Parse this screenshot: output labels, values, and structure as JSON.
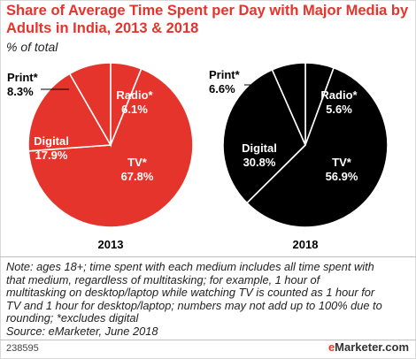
{
  "title": "Share of Average Time Spent per Day with Major Media by Adults in India, 2013 & 2018",
  "subtitle": "% of total",
  "chart_data": [
    {
      "type": "pie",
      "year": "2013",
      "slices": [
        {
          "name": "TV*",
          "value": 67.8,
          "label": "67.8%",
          "color": "#e4342b"
        },
        {
          "name": "Digital",
          "value": 17.9,
          "label": "17.9%",
          "color": "#e4342b"
        },
        {
          "name": "Print*",
          "value": 8.3,
          "label": "8.3%",
          "color": "#e4342b"
        },
        {
          "name": "Radio*",
          "value": 6.1,
          "label": "6.1%",
          "color": "#e4342b"
        }
      ]
    },
    {
      "type": "pie",
      "year": "2018",
      "slices": [
        {
          "name": "TV*",
          "value": 56.9,
          "label": "56.9%",
          "color": "#000000"
        },
        {
          "name": "Digital",
          "value": 30.8,
          "label": "30.8%",
          "color": "#000000"
        },
        {
          "name": "Print*",
          "value": 6.6,
          "label": "6.6%",
          "color": "#000000"
        },
        {
          "name": "Radio*",
          "value": 5.6,
          "label": "5.6%",
          "color": "#000000"
        }
      ]
    }
  ],
  "note_lines": [
    "Note: ages 18+; time spent with each medium includes all time spent with",
    "that medium, regardless of multitasking; for example, 1 hour of",
    "multitasking on desktop/laptop while watching TV is counted as 1 hour for",
    "TV and 1 hour for desktop/laptop; numbers may not add up to 100% due to",
    "rounding; *excludes digital",
    "Source: eMarketer, June 2018"
  ],
  "footer_id": "238595",
  "brand": {
    "prefix": "e",
    "rest": "Marketer",
    "suffix": ".com"
  },
  "colors": {
    "accent": "#e4342b",
    "dark": "#000000"
  }
}
